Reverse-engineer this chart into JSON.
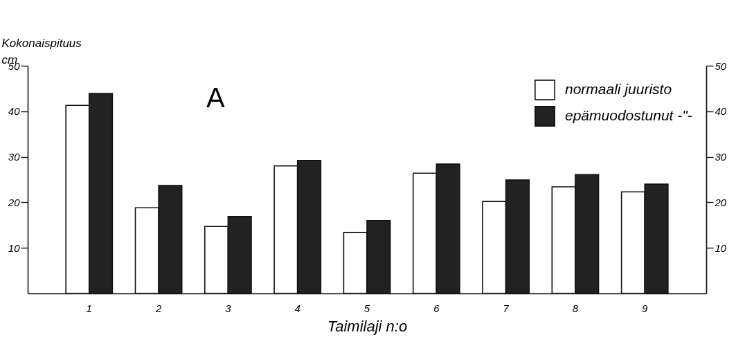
{
  "chart_data": {
    "type": "bar",
    "ylabel": "Kokonaispituus cm",
    "xlabel": "Taimilaji n:o",
    "categories": [
      "1",
      "2",
      "3",
      "4",
      "5",
      "6",
      "7",
      "8",
      "9"
    ],
    "series": [
      {
        "name": "normaali juuristo",
        "color": "#ffffff",
        "values": [
          41.3,
          18.8,
          14.7,
          28.0,
          13.4,
          26.4,
          20.2,
          23.4,
          22.3
        ]
      },
      {
        "name": "epämuodostunut -\"-",
        "color": "#222222",
        "values": [
          43.9,
          23.7,
          16.9,
          29.2,
          16.0,
          28.4,
          24.9,
          26.1,
          24.0
        ]
      }
    ],
    "ylim": [
      0,
      50
    ],
    "yticks": [
      10,
      20,
      30,
      40,
      50
    ],
    "y2lim": [
      0,
      50
    ],
    "y2ticks": [
      10,
      20,
      30,
      40,
      50
    ],
    "annotations": [
      "A"
    ],
    "legend": "top right",
    "grid": false
  }
}
